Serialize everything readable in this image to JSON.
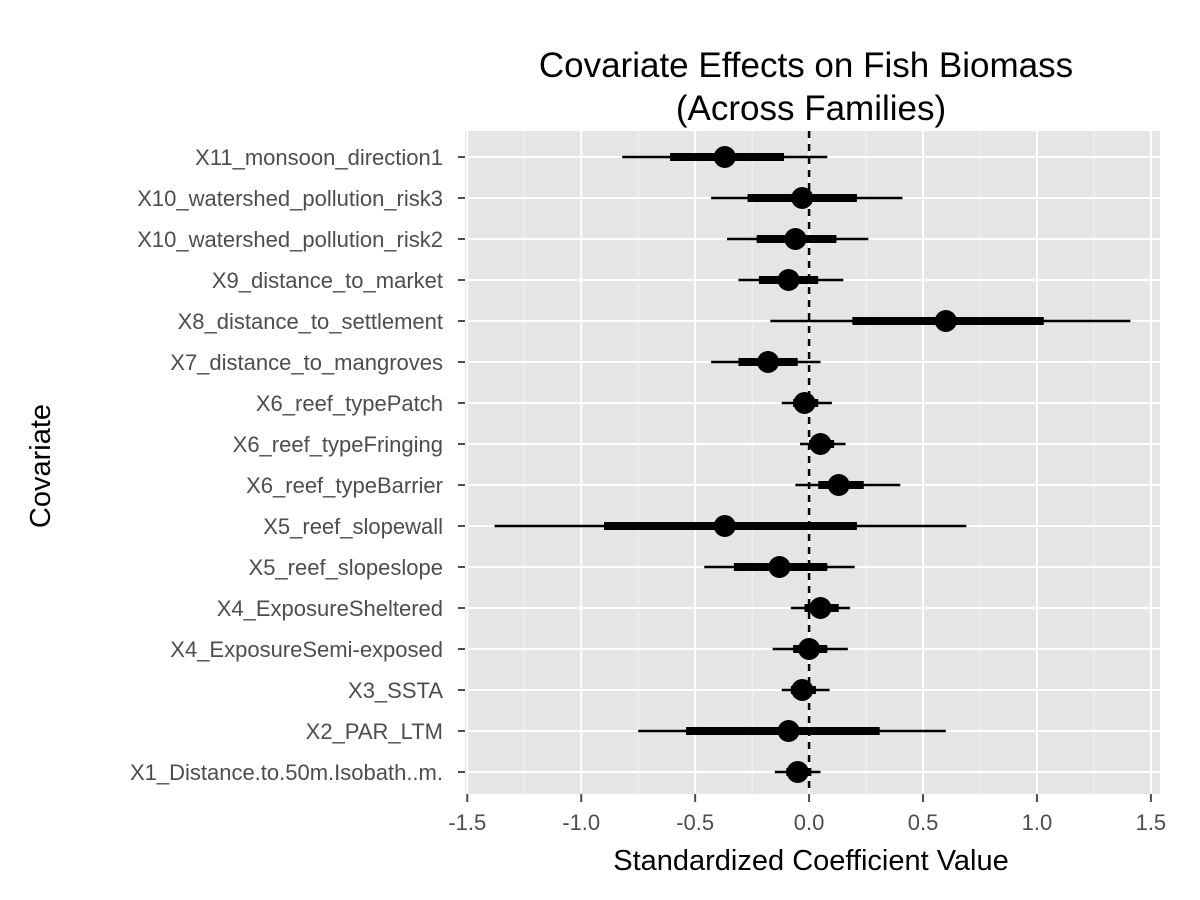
{
  "chart_data": {
    "type": "coefficient-plot",
    "title": [
      "Covariate Effects on Fish Biomass",
      "(Across Families)"
    ],
    "xlabel": "Standardized Coefficient Value",
    "ylabel": "Covariate",
    "xlim": [
      -1.51,
      1.54
    ],
    "x_ticks": [
      -1.5,
      -1.0,
      -0.5,
      0.0,
      0.5,
      1.0,
      1.5
    ],
    "x_tick_labels": [
      "-1.5",
      "-1.0",
      "-0.5",
      "0.0",
      "0.5",
      "1.0",
      "1.5"
    ],
    "reference_line": 0,
    "grid": true,
    "panel_background": "#e5e5e5",
    "grid_color": "#ffffff",
    "mark_color": "#000000",
    "rows": [
      {
        "label": "X11_monsoon_direction1",
        "estimate": -0.37,
        "inner": [
          -0.61,
          -0.11
        ],
        "outer": [
          -0.82,
          0.08
        ]
      },
      {
        "label": "X10_watershed_pollution_risk3",
        "estimate": -0.03,
        "inner": [
          -0.27,
          0.21
        ],
        "outer": [
          -0.43,
          0.41
        ]
      },
      {
        "label": "X10_watershed_pollution_risk2",
        "estimate": -0.06,
        "inner": [
          -0.23,
          0.12
        ],
        "outer": [
          -0.36,
          0.26
        ]
      },
      {
        "label": "X9_distance_to_market",
        "estimate": -0.09,
        "inner": [
          -0.22,
          0.04
        ],
        "outer": [
          -0.31,
          0.15
        ]
      },
      {
        "label": "X8_distance_to_settlement",
        "estimate": 0.6,
        "inner": [
          0.19,
          1.03
        ],
        "outer": [
          -0.17,
          1.41
        ]
      },
      {
        "label": "X7_distance_to_mangroves",
        "estimate": -0.18,
        "inner": [
          -0.31,
          -0.05
        ],
        "outer": [
          -0.43,
          0.05
        ]
      },
      {
        "label": "X6_reef_typePatch",
        "estimate": -0.02,
        "inner": [
          -0.07,
          0.04
        ],
        "outer": [
          -0.12,
          0.1
        ]
      },
      {
        "label": "X6_reef_typeFringing",
        "estimate": 0.05,
        "inner": [
          0.0,
          0.11
        ],
        "outer": [
          -0.04,
          0.16
        ]
      },
      {
        "label": "X6_reef_typeBarrier",
        "estimate": 0.13,
        "inner": [
          0.04,
          0.24
        ],
        "outer": [
          -0.06,
          0.4
        ]
      },
      {
        "label": "X5_reef_slopewall",
        "estimate": -0.37,
        "inner": [
          -0.9,
          0.21
        ],
        "outer": [
          -1.38,
          0.69
        ]
      },
      {
        "label": "X5_reef_slopeslope",
        "estimate": -0.13,
        "inner": [
          -0.33,
          0.08
        ],
        "outer": [
          -0.46,
          0.2
        ]
      },
      {
        "label": "X4_ExposureSheltered",
        "estimate": 0.05,
        "inner": [
          -0.02,
          0.13
        ],
        "outer": [
          -0.08,
          0.18
        ]
      },
      {
        "label": "X4_ExposureSemi-exposed",
        "estimate": 0.0,
        "inner": [
          -0.07,
          0.08
        ],
        "outer": [
          -0.16,
          0.17
        ]
      },
      {
        "label": "X3_SSTA",
        "estimate": -0.03,
        "inner": [
          -0.08,
          0.03
        ],
        "outer": [
          -0.12,
          0.09
        ]
      },
      {
        "label": "X2_PAR_LTM",
        "estimate": -0.09,
        "inner": [
          -0.54,
          0.31
        ],
        "outer": [
          -0.75,
          0.6
        ]
      },
      {
        "label": "X1_Distance.to.50m.Isobath..m.",
        "estimate": -0.05,
        "inner": [
          -0.1,
          0.01
        ],
        "outer": [
          -0.15,
          0.05
        ]
      }
    ]
  }
}
